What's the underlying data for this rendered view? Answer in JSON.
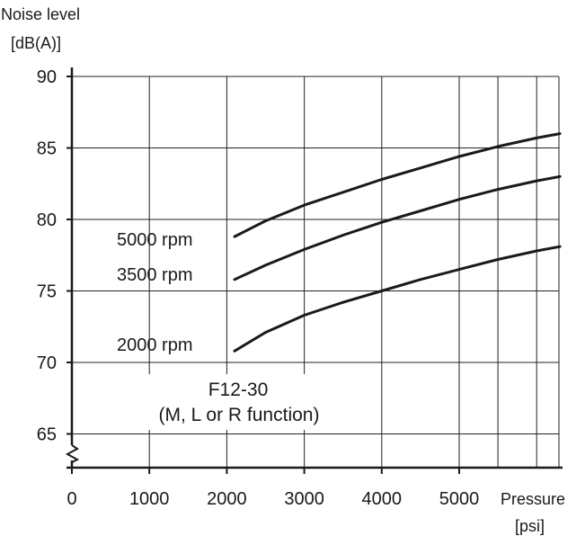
{
  "chart_data": {
    "type": "line",
    "title": "",
    "ylabel_line1": "Noise level",
    "ylabel_line2": "[dB(A)]",
    "xlabel_line1": "Pressure",
    "xlabel_line2": "[psi]",
    "annotation_line1": "F12-30",
    "annotation_line2": "(M, L or R function)",
    "xlim": [
      0,
      6300
    ],
    "ylim": [
      62.5,
      90
    ],
    "y_axis_break": true,
    "grid": true,
    "x_ticks": [
      0,
      1000,
      2000,
      3000,
      4000,
      5000
    ],
    "x_tick_labels": [
      "0",
      "1000",
      "2000",
      "3000",
      "4000",
      "5000"
    ],
    "y_ticks": [
      65,
      70,
      75,
      80,
      85,
      90
    ],
    "y_tick_labels": [
      "65",
      "70",
      "75",
      "80",
      "85",
      "90"
    ],
    "series": [
      {
        "name": "5000 rpm",
        "x": [
          2100,
          2500,
          3000,
          3500,
          4000,
          4500,
          5000,
          5500,
          6000,
          6300
        ],
        "y": [
          78.8,
          79.9,
          81.0,
          81.9,
          82.8,
          83.6,
          84.4,
          85.1,
          85.7,
          86.0
        ]
      },
      {
        "name": "3500 rpm",
        "x": [
          2100,
          2500,
          3000,
          3500,
          4000,
          4500,
          5000,
          5500,
          6000,
          6300
        ],
        "y": [
          75.8,
          76.8,
          77.9,
          78.9,
          79.8,
          80.6,
          81.4,
          82.1,
          82.7,
          83.0
        ]
      },
      {
        "name": "2000 rpm",
        "x": [
          2100,
          2500,
          3000,
          3500,
          4000,
          4500,
          5000,
          5500,
          6000,
          6300
        ],
        "y": [
          70.8,
          72.1,
          73.3,
          74.2,
          75.0,
          75.8,
          76.5,
          77.2,
          77.8,
          78.1
        ]
      }
    ]
  }
}
